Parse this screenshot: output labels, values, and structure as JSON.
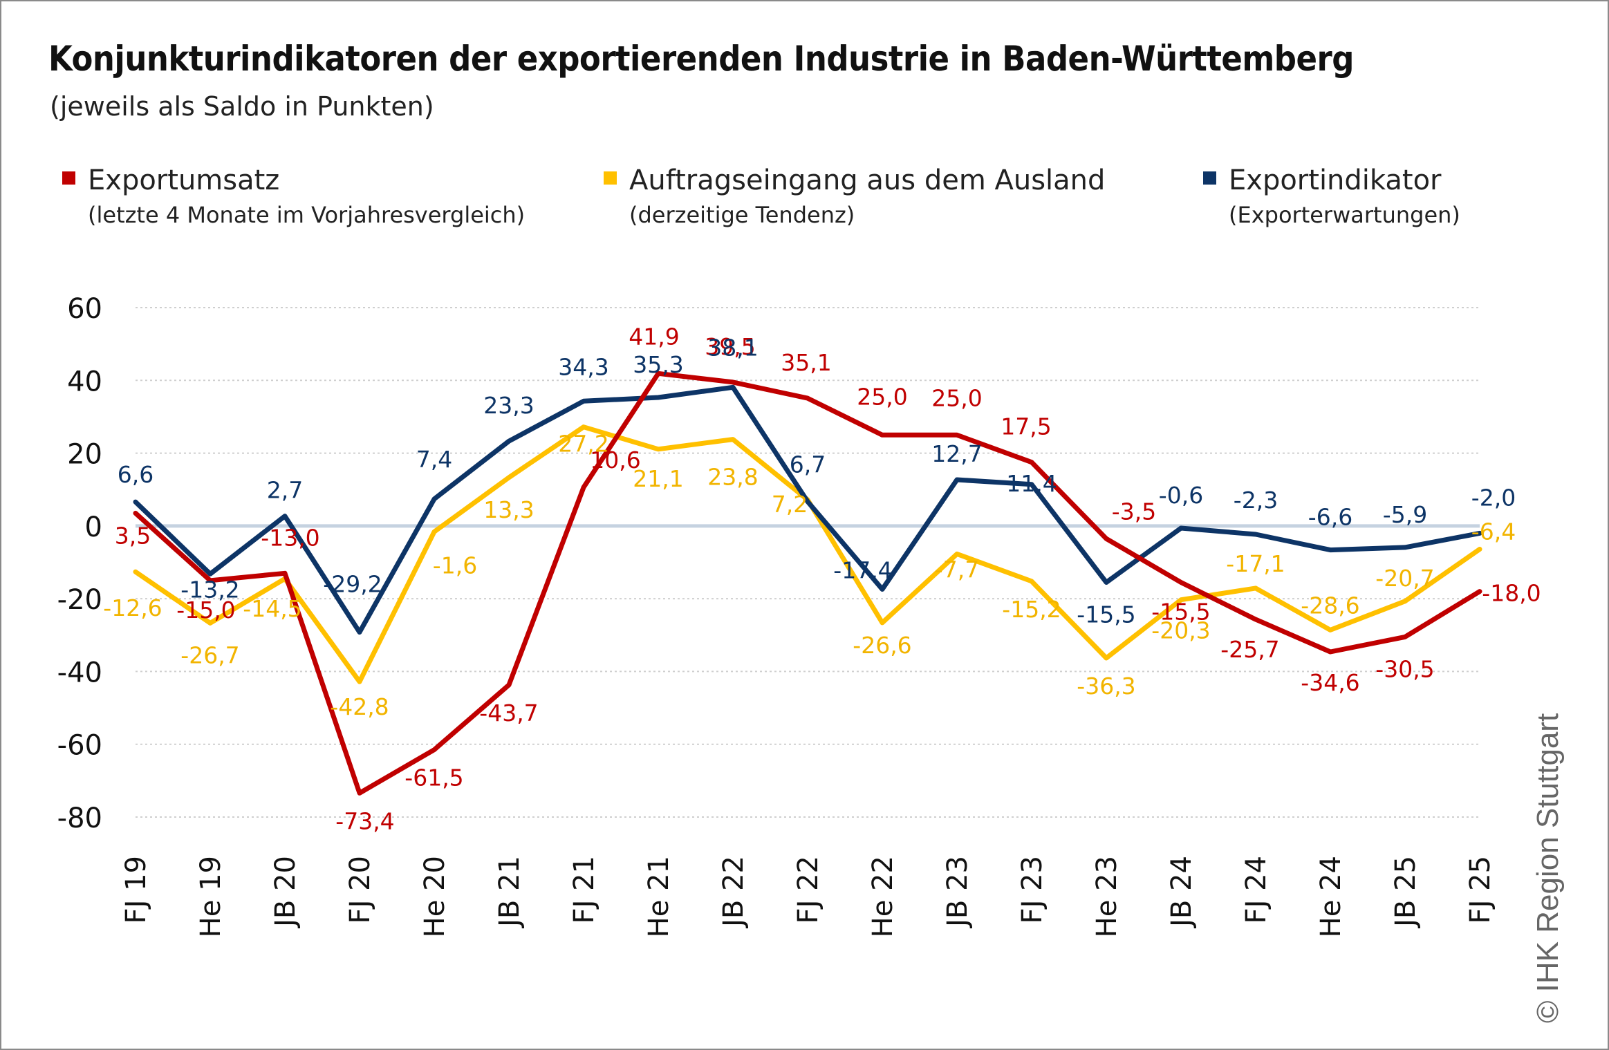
{
  "title": "Konjunkturindikatoren der exportierenden Industrie in Baden-Württemberg",
  "subtitle": "(jeweils als Saldo in Punkten)",
  "credit": "© IHK Region Stuttgart",
  "colors": {
    "export_umsatz": "#c00000",
    "auftragseingang": "#ffc000",
    "exportindikator": "#0d3466",
    "zero_line": "#c5d2e0",
    "grid": "#cfcfcf",
    "text": "#222222"
  },
  "legend": [
    {
      "label": "Exportumsatz",
      "sub": "(letzte 4 Monate  im Vorjahresvergleich)",
      "color": "#c00000"
    },
    {
      "label": "Auftragseingang aus dem Ausland",
      "sub": "(derzeitige Tendenz)",
      "color": "#ffc000"
    },
    {
      "label": "Exportindikator",
      "sub": "(Exporterwartungen)",
      "color": "#0d3466"
    }
  ],
  "chart_data": {
    "type": "line",
    "title": "Konjunkturindikatoren der exportierenden Industrie in Baden-Württemberg",
    "subtitle": "(jeweils als Saldo in Punkten)",
    "categories": [
      "FJ 19",
      "He 19",
      "JB 20",
      "FJ 20",
      "He 20",
      "JB 21",
      "FJ 21",
      "He 21",
      "JB 22",
      "FJ 22",
      "He 22",
      "JB 23",
      "FJ 23",
      "He 23",
      "JB 24",
      "FJ 24",
      "He 24",
      "JB 25",
      "FJ 25"
    ],
    "ylim": [
      -80,
      60
    ],
    "yticks": [
      60,
      40,
      20,
      0,
      -20,
      -40,
      -60,
      -80
    ],
    "ytick_labels": [
      "60",
      "40",
      "20",
      "0",
      "-20",
      "-40",
      "-60",
      "-80"
    ],
    "grid": true,
    "series": [
      {
        "name": "Exportumsatz",
        "color": "#c00000",
        "values": [
          3.5,
          -15.0,
          -13.0,
          -73.4,
          -61.5,
          -43.7,
          10.6,
          41.9,
          39.5,
          35.1,
          25.0,
          25.0,
          17.5,
          -3.5,
          -15.5,
          -25.7,
          -34.6,
          -30.5,
          -18.0
        ],
        "labels": [
          "3,5",
          "-15,0",
          "-13,0",
          "-73,4",
          "-61,5",
          "-43,7",
          "10,6",
          "41,9",
          "39,5",
          "35,1",
          "25,0",
          "25,0",
          "17,5",
          "-3,5",
          "-15,5",
          "-25,7",
          "-34,6",
          "-30,5",
          "-18,0"
        ]
      },
      {
        "name": "Auftragseingang aus dem Ausland",
        "color": "#ffc000",
        "values": [
          -12.6,
          -26.7,
          -14.5,
          -42.8,
          -1.6,
          13.3,
          27.2,
          21.1,
          23.8,
          7.2,
          -26.6,
          -7.7,
          -15.2,
          -36.3,
          -20.3,
          -17.1,
          -28.6,
          -20.7,
          -6.4
        ],
        "labels": [
          "-12,6",
          "-26,7",
          "-14,5",
          "-42,8",
          "-1,6",
          "13,3",
          "27,2",
          "21,1",
          "23,8",
          "7,2",
          "-26,6",
          "-7,7",
          "-15,2",
          "-36,3",
          "-20,3",
          "-17,1",
          "-28,6",
          "-20,7",
          "-6,4"
        ]
      },
      {
        "name": "Exportindikator",
        "color": "#0d3466",
        "values": [
          6.6,
          -13.2,
          2.7,
          -29.2,
          7.4,
          23.3,
          34.3,
          35.3,
          38.1,
          6.7,
          -17.4,
          12.7,
          11.4,
          -15.5,
          -0.6,
          -2.3,
          -6.6,
          -5.9,
          -2.0
        ],
        "labels": [
          "6,6",
          "-13,2",
          "2,7",
          "-29,2",
          "7,4",
          "23,3",
          "34,3",
          "35,3",
          "38,1",
          "6,7",
          "-17,4",
          "12,7",
          "11,4",
          "-15,5",
          "-0,6",
          "-2,3",
          "-6,6",
          "-5,9",
          "-2,0"
        ]
      }
    ]
  }
}
